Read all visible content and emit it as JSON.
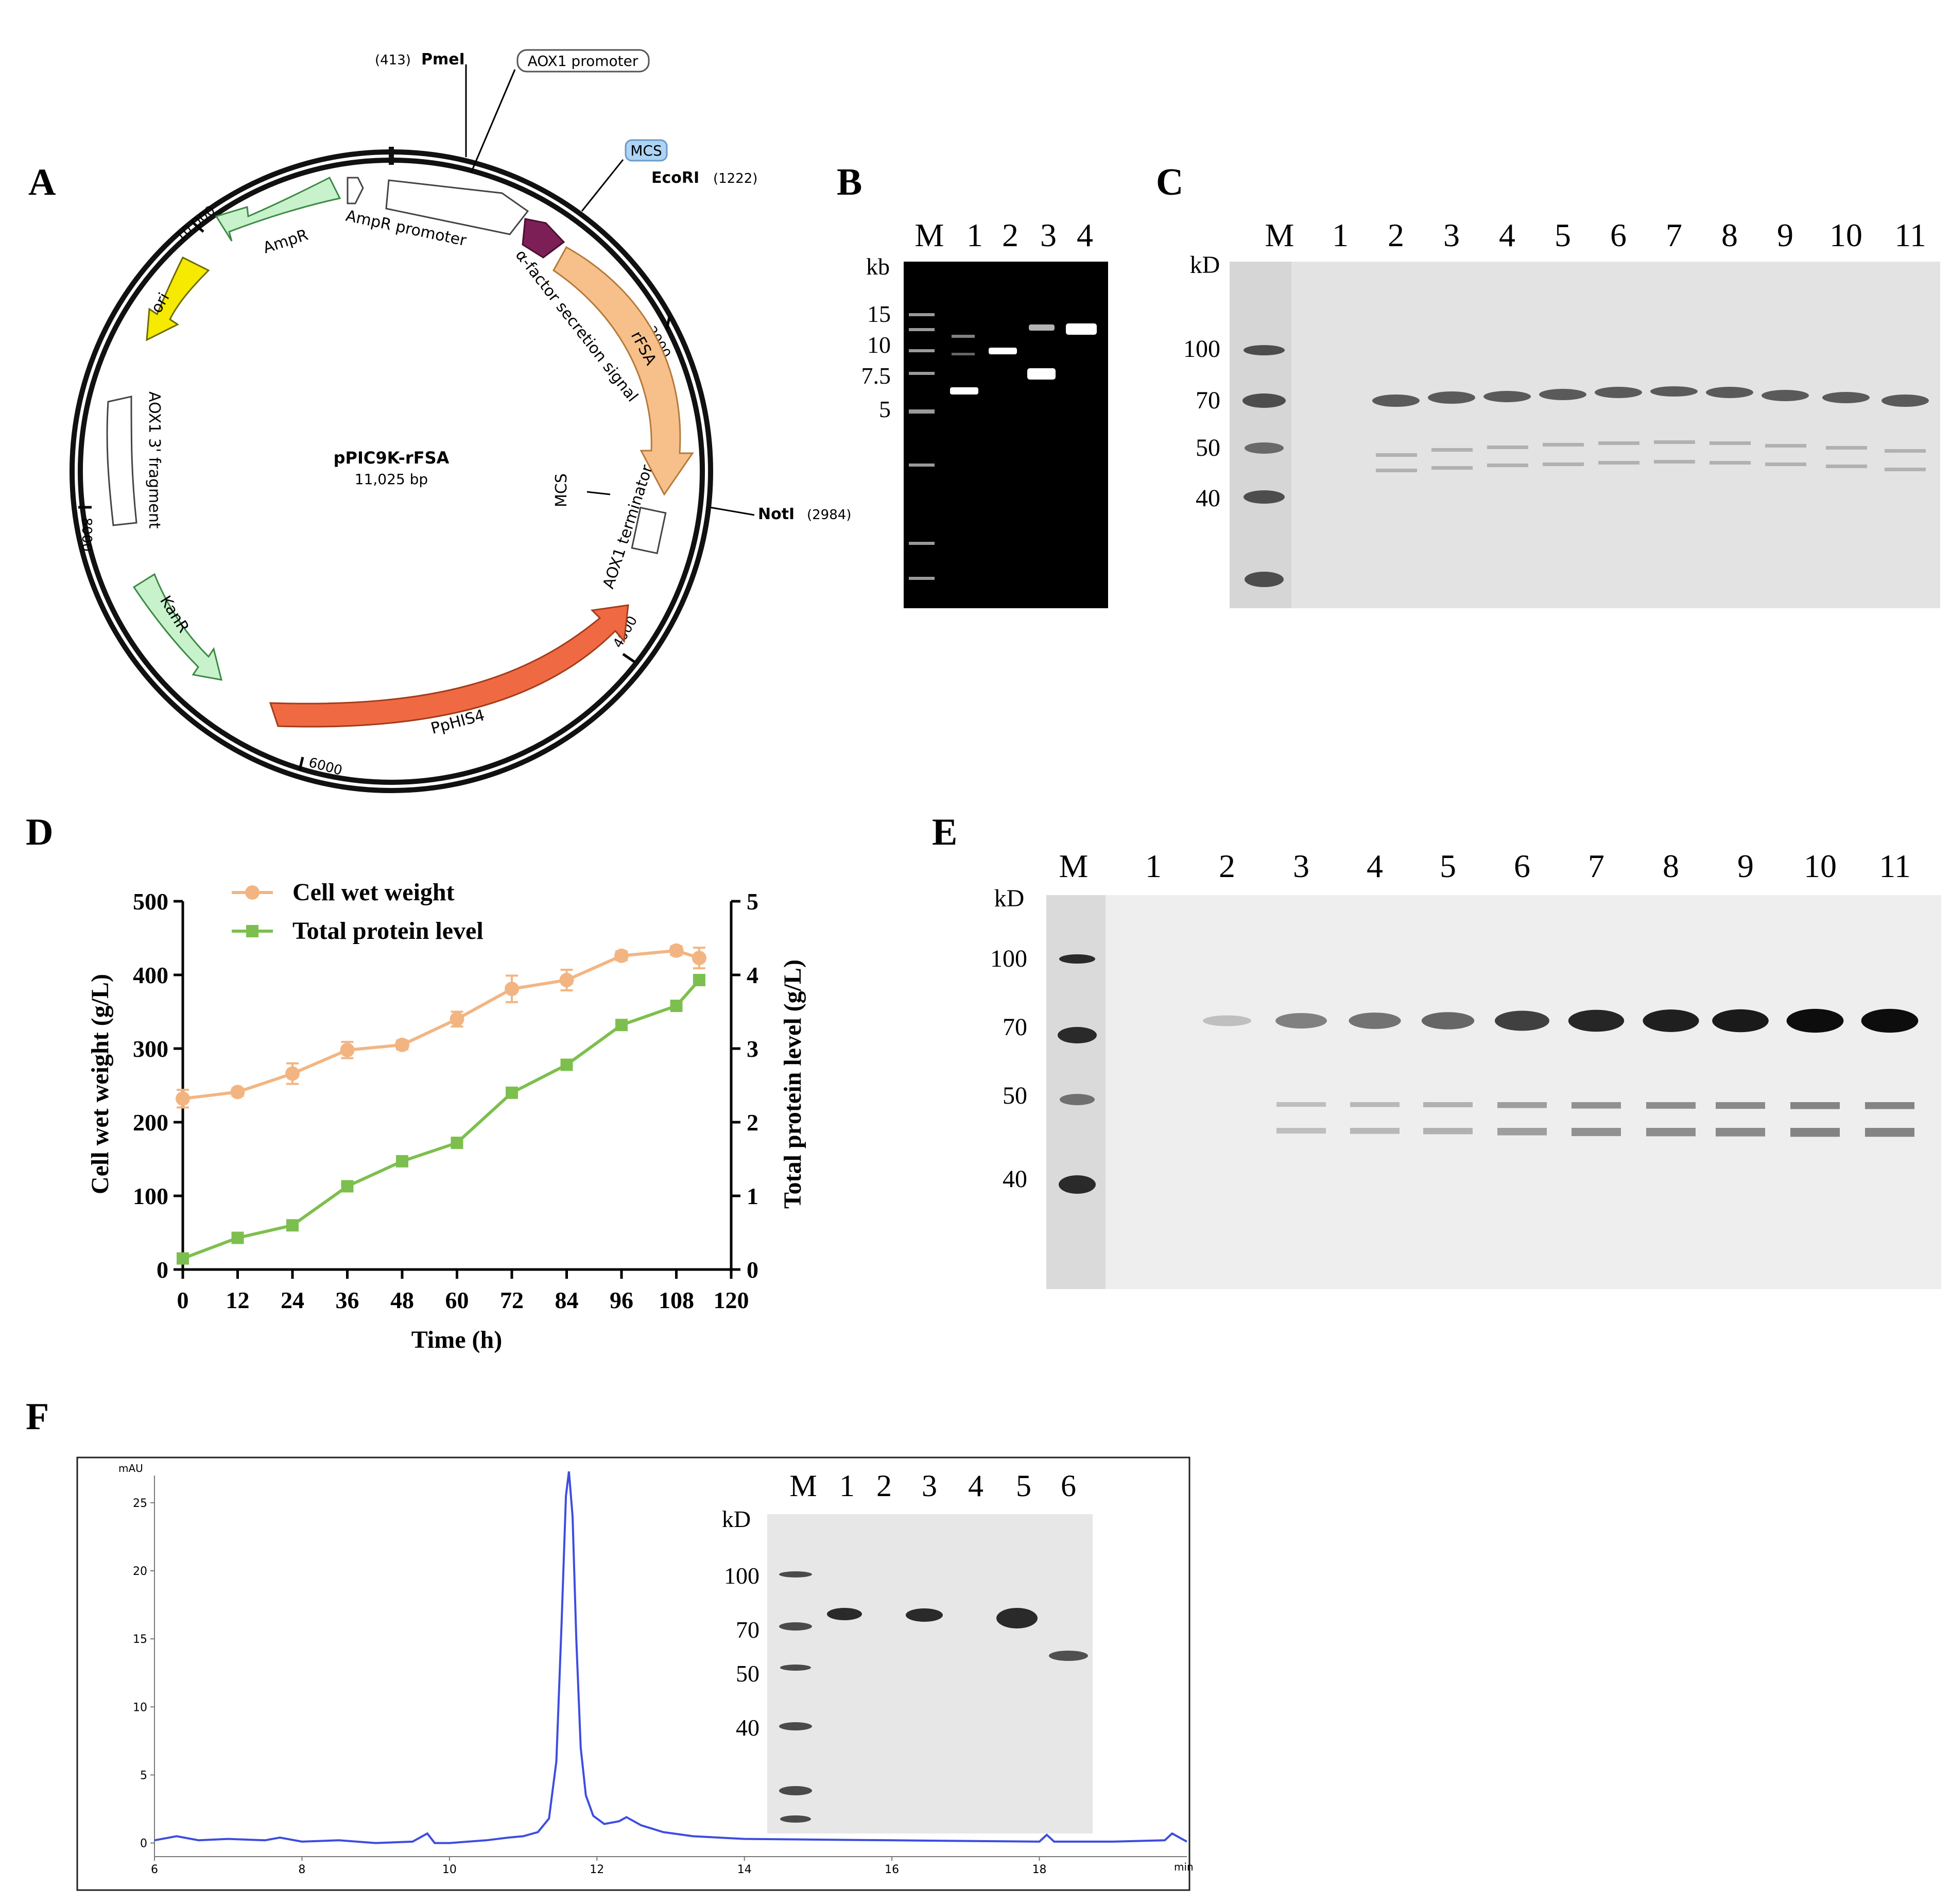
{
  "panels": {
    "a": "A",
    "b": "B",
    "c": "C",
    "d": "D",
    "e": "E",
    "f": "F"
  },
  "plasmid": {
    "name": "pPIC9K-rFSA",
    "size": "11,025 bp",
    "sites": [
      {
        "num": "(413)",
        "name": "PmeI"
      },
      {
        "name": "EcoRI",
        "num": "(1222)"
      },
      {
        "name": "NotI",
        "num": "(2984)"
      }
    ],
    "tags": {
      "aox1_promoter": "AOX1 promoter",
      "mcs_top": "MCS"
    },
    "features": {
      "ampr_promoter": "AmpR promoter",
      "ampr": "AmpR",
      "ori": "ori",
      "alpha": "α-factor secretion signal",
      "rfsa": "rFSA",
      "mcs": "MCS",
      "aox1_term": "AOX1 terminator",
      "aox1_frag": "AOX1 3' fragment",
      "kanr": "KanR",
      "pphis4": "PpHIS4"
    },
    "ticks": [
      "2000",
      "4000",
      "6000",
      "8000",
      "10,000"
    ]
  },
  "gel_b": {
    "lanes": [
      "M",
      "1",
      "2",
      "3",
      "4"
    ],
    "unit": "kb",
    "markers": [
      "15",
      "10",
      "7.5",
      "5"
    ]
  },
  "gel_c": {
    "lanes": [
      "M",
      "1",
      "2",
      "3",
      "4",
      "5",
      "6",
      "7",
      "8",
      "9",
      "10",
      "11"
    ],
    "unit": "kD",
    "markers": [
      "100",
      "70",
      "50",
      "40"
    ]
  },
  "gel_e": {
    "lanes": [
      "M",
      "1",
      "2",
      "3",
      "4",
      "5",
      "6",
      "7",
      "8",
      "9",
      "10",
      "11"
    ],
    "unit": "kD",
    "markers": [
      "100",
      "70",
      "50",
      "40"
    ],
    "band_intensity": [
      0,
      0.25,
      0.5,
      0.55,
      0.6,
      0.75,
      0.85,
      0.88,
      0.9,
      0.95,
      0.95
    ]
  },
  "chart_d": {
    "chart_data": {
      "type": "line",
      "xlabel": "Time (h)",
      "ylabel_left": "Cell wet weight (g/L)",
      "ylabel_right": "Total protein level (g/L)",
      "xlim": [
        0,
        120
      ],
      "ylim_left": [
        0,
        500
      ],
      "ylim_right": [
        0,
        5
      ],
      "x_ticks": [
        "0",
        "12",
        "24",
        "36",
        "48",
        "60",
        "72",
        "84",
        "96",
        "108",
        "120"
      ],
      "y_ticks_left": [
        "0",
        "100",
        "200",
        "300",
        "400",
        "500"
      ],
      "y_ticks_right": [
        "0",
        "1",
        "2",
        "3",
        "4",
        "5"
      ],
      "legend_position": "top-left",
      "series": [
        {
          "name": "Cell wet weight",
          "axis": "left",
          "color": "#F2B582",
          "marker": "circle",
          "x": [
            0,
            12,
            24,
            36,
            48,
            60,
            72,
            84,
            96,
            108,
            113
          ],
          "y": [
            232,
            241,
            266,
            298,
            305,
            340,
            381,
            393,
            426,
            433,
            423
          ],
          "err": [
            12,
            5,
            14,
            11,
            6,
            10,
            18,
            14,
            6,
            6,
            14
          ]
        },
        {
          "name": "Total protein level",
          "axis": "right",
          "color": "#7DBF4E",
          "marker": "square",
          "x": [
            0,
            12,
            24,
            36,
            48,
            60,
            72,
            84,
            96,
            108,
            113
          ],
          "y": [
            0.15,
            0.43,
            0.6,
            1.13,
            1.47,
            1.72,
            2.4,
            2.78,
            3.32,
            3.58,
            3.93
          ]
        }
      ]
    }
  },
  "chart_f": {
    "chart_data": {
      "type": "line",
      "ylabel": "mAU",
      "xlabel": "min",
      "xlim": [
        6,
        20
      ],
      "ylim": [
        -1,
        27
      ],
      "x_ticks": [
        "6",
        "8",
        "10",
        "12",
        "14",
        "16",
        "18"
      ],
      "y_ticks": [
        "0",
        "5",
        "10",
        "15",
        "20",
        "25"
      ],
      "color": "#3d4de0",
      "series": [
        {
          "name": "",
          "x": [
            6.0,
            6.3,
            6.6,
            7.0,
            7.5,
            7.7,
            8.0,
            8.5,
            9.0,
            9.5,
            9.7,
            9.8,
            10.0,
            10.5,
            10.8,
            11.0,
            11.2,
            11.35,
            11.45,
            11.52,
            11.58,
            11.62,
            11.67,
            11.72,
            11.78,
            11.85,
            11.95,
            12.1,
            12.3,
            12.4,
            12.6,
            12.9,
            13.3,
            14.0,
            15.0,
            16.0,
            17.0,
            18.0,
            18.1,
            18.2,
            19.0,
            19.7,
            19.8,
            20.0
          ],
          "y": [
            0.2,
            0.5,
            0.2,
            0.3,
            0.2,
            0.4,
            0.1,
            0.2,
            0.0,
            0.1,
            0.7,
            0.0,
            0.0,
            0.2,
            0.4,
            0.5,
            0.8,
            1.8,
            6.0,
            16.0,
            25.5,
            27.3,
            24.0,
            15.0,
            7.0,
            3.5,
            2.0,
            1.4,
            1.6,
            1.9,
            1.3,
            0.8,
            0.5,
            0.3,
            0.25,
            0.2,
            0.15,
            0.1,
            0.6,
            0.1,
            0.1,
            0.2,
            0.7,
            0.1
          ]
        }
      ]
    }
  },
  "gel_f": {
    "lanes": [
      "M",
      "1",
      "2",
      "3",
      "4",
      "5",
      "6"
    ],
    "unit": "kD",
    "markers": [
      "100",
      "70",
      "50",
      "40"
    ]
  }
}
